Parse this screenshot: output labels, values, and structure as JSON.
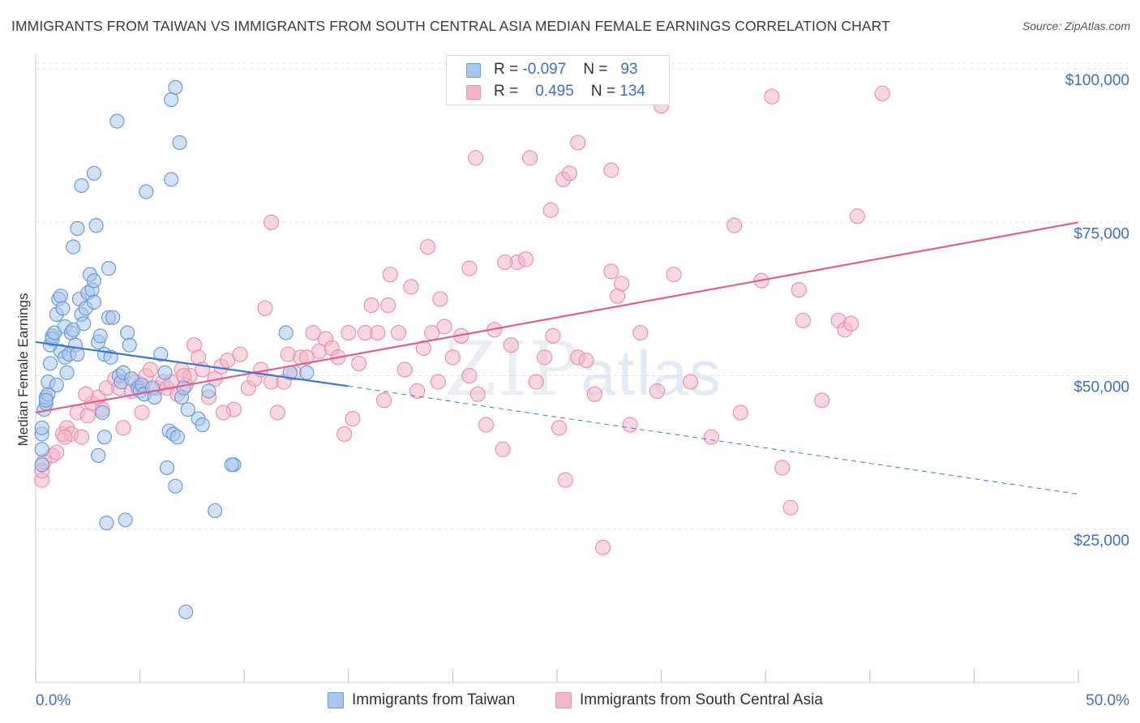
{
  "title": "IMMIGRANTS FROM TAIWAN VS IMMIGRANTS FROM SOUTH CENTRAL ASIA MEDIAN FEMALE EARNINGS CORRELATION CHART",
  "source": "Source: ZipAtlas.com",
  "watermark": {
    "zip": "ZIP",
    "atlas": "atlas"
  },
  "legend": {
    "rows": [
      {
        "r_label": "R =",
        "r_value": "-0.097",
        "n_label": "N =",
        "n_value": "93"
      },
      {
        "r_label": "R =",
        "r_value": "0.495",
        "n_label": "N =",
        "n_value": "134"
      }
    ]
  },
  "colors": {
    "taiwan_fill": "#a9c7ec",
    "taiwan_stroke": "#6d9bd4",
    "taiwan_line": "#3a78d0",
    "sca_fill": "#f4b6c8",
    "sca_stroke": "#ea92ad",
    "sca_line": "#e0608c",
    "axis_text": "#3d6fc4",
    "grid": "#e0e0e0"
  },
  "chart_data": {
    "type": "scatter",
    "title": "IMMIGRANTS FROM TAIWAN VS IMMIGRANTS FROM SOUTH CENTRAL ASIA MEDIAN FEMALE EARNINGS CORRELATION CHART",
    "xlabel": "",
    "ylabel": "Median Female Earnings",
    "xlim": [
      0,
      50
    ],
    "ylim": [
      0,
      102000
    ],
    "x_tick_labels": [
      "0.0%",
      "50.0%"
    ],
    "y_ticks": [
      25000,
      50000,
      75000,
      100000
    ],
    "y_tick_labels": [
      "$25,000",
      "$50,000",
      "$75,000",
      "$100,000"
    ],
    "grid": true,
    "legend_position": "top-center",
    "series": [
      {
        "name": "Immigrants from Taiwan",
        "r": -0.097,
        "n": 93,
        "trend": {
          "x": [
            0,
            15
          ],
          "y": [
            55500,
            48300
          ],
          "dashed_to": [
            50,
            30700
          ]
        },
        "points": [
          [
            0.3,
            35500
          ],
          [
            0.3,
            38000
          ],
          [
            0.3,
            40500
          ],
          [
            0.3,
            41500
          ],
          [
            0.4,
            44500
          ],
          [
            0.5,
            45500
          ],
          [
            0.5,
            46500
          ],
          [
            0.6,
            47000
          ],
          [
            0.6,
            49000
          ],
          [
            0.7,
            52000
          ],
          [
            0.7,
            55000
          ],
          [
            0.8,
            56500
          ],
          [
            0.8,
            56000
          ],
          [
            0.9,
            57000
          ],
          [
            1.0,
            60000
          ],
          [
            1.1,
            62500
          ],
          [
            1.2,
            63000
          ],
          [
            1.3,
            61000
          ],
          [
            1.4,
            58000
          ],
          [
            1.2,
            54000
          ],
          [
            1.4,
            53000
          ],
          [
            1.5,
            50500
          ],
          [
            1.6,
            53500
          ],
          [
            1.7,
            57000
          ],
          [
            1.8,
            57500
          ],
          [
            1.9,
            55000
          ],
          [
            2.0,
            53500
          ],
          [
            2.1,
            62500
          ],
          [
            2.2,
            60000
          ],
          [
            2.3,
            58500
          ],
          [
            2.4,
            61000
          ],
          [
            2.5,
            63500
          ],
          [
            2.6,
            66500
          ],
          [
            2.7,
            64000
          ],
          [
            2.8,
            62000
          ],
          [
            2.8,
            65500
          ],
          [
            3.0,
            55500
          ],
          [
            3.1,
            56500
          ],
          [
            3.3,
            53500
          ],
          [
            3.5,
            67500
          ],
          [
            3.5,
            59500
          ],
          [
            3.6,
            53000
          ],
          [
            3.7,
            59500
          ],
          [
            4.0,
            50000
          ],
          [
            4.1,
            49000
          ],
          [
            4.2,
            50500
          ],
          [
            4.4,
            57000
          ],
          [
            4.5,
            55000
          ],
          [
            4.6,
            49500
          ],
          [
            4.9,
            48000
          ],
          [
            5.0,
            47500
          ],
          [
            5.1,
            48500
          ],
          [
            5.2,
            47000
          ],
          [
            5.6,
            48000
          ],
          [
            5.7,
            46500
          ],
          [
            6.0,
            53500
          ],
          [
            6.2,
            50500
          ],
          [
            6.4,
            41000
          ],
          [
            6.6,
            40500
          ],
          [
            6.8,
            40000
          ],
          [
            7.0,
            46500
          ],
          [
            7.1,
            48000
          ],
          [
            7.3,
            44500
          ],
          [
            7.8,
            43000
          ],
          [
            8.0,
            42000
          ],
          [
            8.3,
            47500
          ],
          [
            9.5,
            35500
          ],
          [
            12.0,
            57000
          ],
          [
            12.2,
            50500
          ],
          [
            13.0,
            50500
          ],
          [
            1.8,
            71000
          ],
          [
            2.0,
            74000
          ],
          [
            2.2,
            81000
          ],
          [
            2.8,
            83000
          ],
          [
            2.9,
            74500
          ],
          [
            3.9,
            91500
          ],
          [
            5.3,
            80000
          ],
          [
            6.5,
            82000
          ],
          [
            6.5,
            95000
          ],
          [
            6.7,
            97000
          ],
          [
            6.9,
            88000
          ],
          [
            3.2,
            44000
          ],
          [
            3.3,
            40000
          ],
          [
            3.0,
            37000
          ],
          [
            3.4,
            26000
          ],
          [
            4.3,
            26500
          ],
          [
            6.3,
            35000
          ],
          [
            6.7,
            32000
          ],
          [
            8.6,
            28000
          ],
          [
            9.4,
            35500
          ],
          [
            7.2,
            11500
          ],
          [
            0.5,
            46000
          ],
          [
            1.0,
            48500
          ]
        ]
      },
      {
        "name": "Immigrants from South Central Asia",
        "r": 0.495,
        "n": 134,
        "trend": {
          "x": [
            0,
            50
          ],
          "y": [
            44000,
            75000
          ]
        },
        "points": [
          [
            0.3,
            33000
          ],
          [
            0.3,
            34500
          ],
          [
            0.4,
            36000
          ],
          [
            0.8,
            37000
          ],
          [
            1.0,
            37500
          ],
          [
            1.3,
            40500
          ],
          [
            1.5,
            41500
          ],
          [
            1.7,
            40500
          ],
          [
            2.0,
            44000
          ],
          [
            2.2,
            40000
          ],
          [
            2.5,
            43500
          ],
          [
            2.7,
            45500
          ],
          [
            3.0,
            46500
          ],
          [
            3.2,
            44500
          ],
          [
            3.4,
            48000
          ],
          [
            3.8,
            49500
          ],
          [
            4.0,
            48000
          ],
          [
            4.2,
            41500
          ],
          [
            4.6,
            47500
          ],
          [
            4.8,
            49000
          ],
          [
            5.0,
            48500
          ],
          [
            5.3,
            50000
          ],
          [
            5.5,
            51000
          ],
          [
            5.8,
            48000
          ],
          [
            6.1,
            49000
          ],
          [
            6.3,
            48000
          ],
          [
            6.5,
            49000
          ],
          [
            6.8,
            47000
          ],
          [
            7.0,
            51000
          ],
          [
            7.2,
            48500
          ],
          [
            7.4,
            50000
          ],
          [
            7.6,
            55000
          ],
          [
            7.8,
            53000
          ],
          [
            8.0,
            51000
          ],
          [
            8.3,
            46500
          ],
          [
            8.6,
            49500
          ],
          [
            8.9,
            51500
          ],
          [
            9.2,
            52500
          ],
          [
            9.5,
            44500
          ],
          [
            9.8,
            53500
          ],
          [
            10.2,
            48000
          ],
          [
            10.5,
            49500
          ],
          [
            10.8,
            51000
          ],
          [
            11.0,
            61000
          ],
          [
            11.3,
            49000
          ],
          [
            11.6,
            44000
          ],
          [
            11.9,
            49000
          ],
          [
            12.1,
            53500
          ],
          [
            12.4,
            50500
          ],
          [
            12.7,
            53000
          ],
          [
            13.0,
            53000
          ],
          [
            13.3,
            57000
          ],
          [
            13.6,
            54000
          ],
          [
            13.9,
            56000
          ],
          [
            14.2,
            54500
          ],
          [
            14.5,
            53000
          ],
          [
            14.8,
            40500
          ],
          [
            15.2,
            43000
          ],
          [
            15.5,
            52000
          ],
          [
            15.8,
            57000
          ],
          [
            16.1,
            61500
          ],
          [
            16.4,
            57000
          ],
          [
            16.7,
            46000
          ],
          [
            17.0,
            66500
          ],
          [
            17.4,
            57000
          ],
          [
            17.7,
            51000
          ],
          [
            18.0,
            64500
          ],
          [
            18.3,
            47500
          ],
          [
            18.6,
            54500
          ],
          [
            19.0,
            57000
          ],
          [
            19.3,
            49000
          ],
          [
            19.6,
            58000
          ],
          [
            20.0,
            53000
          ],
          [
            20.4,
            56500
          ],
          [
            20.8,
            50000
          ],
          [
            21.2,
            47000
          ],
          [
            21.6,
            42000
          ],
          [
            22.0,
            57500
          ],
          [
            22.4,
            38000
          ],
          [
            22.8,
            55000
          ],
          [
            23.1,
            68500
          ],
          [
            23.5,
            69000
          ],
          [
            24.0,
            49000
          ],
          [
            24.4,
            53000
          ],
          [
            24.8,
            56500
          ],
          [
            25.1,
            41500
          ],
          [
            25.4,
            33000
          ],
          [
            26.0,
            53000
          ],
          [
            26.4,
            52500
          ],
          [
            26.8,
            47000
          ],
          [
            27.2,
            22000
          ],
          [
            27.6,
            67000
          ],
          [
            27.9,
            63000
          ],
          [
            28.1,
            65000
          ],
          [
            28.5,
            42000
          ],
          [
            29.0,
            57000
          ],
          [
            29.8,
            47500
          ],
          [
            30.6,
            66500
          ],
          [
            31.4,
            49000
          ],
          [
            32.4,
            40000
          ],
          [
            33.8,
            44000
          ],
          [
            34.8,
            65500
          ],
          [
            35.8,
            35000
          ],
          [
            36.2,
            28500
          ],
          [
            36.6,
            64000
          ],
          [
            36.8,
            59000
          ],
          [
            37.7,
            46000
          ],
          [
            38.5,
            59000
          ],
          [
            38.8,
            57500
          ],
          [
            39.1,
            58500
          ],
          [
            39.4,
            76000
          ],
          [
            21.1,
            85500
          ],
          [
            23.7,
            85500
          ],
          [
            24.7,
            77000
          ],
          [
            25.3,
            82000
          ],
          [
            25.6,
            83000
          ],
          [
            26.0,
            88000
          ],
          [
            27.6,
            83500
          ],
          [
            30.0,
            94000
          ],
          [
            33.5,
            74500
          ],
          [
            35.3,
            95500
          ],
          [
            40.6,
            96000
          ],
          [
            11.3,
            75000
          ],
          [
            18.8,
            71000
          ],
          [
            20.8,
            67500
          ],
          [
            22.5,
            68500
          ],
          [
            7.1,
            50000
          ],
          [
            9.0,
            44000
          ],
          [
            1.4,
            40000
          ],
          [
            2.4,
            47000
          ],
          [
            5.1,
            44000
          ],
          [
            15.0,
            57000
          ],
          [
            16.9,
            61500
          ],
          [
            19.4,
            62500
          ]
        ]
      }
    ]
  },
  "x_axis": {
    "left_label": "0.0%",
    "right_label": "50.0%"
  },
  "y_axis": {
    "label": "Median Female Earnings"
  },
  "bottom_legend": [
    {
      "label": "Immigrants from Taiwan"
    },
    {
      "label": "Immigrants from South Central Asia"
    }
  ]
}
